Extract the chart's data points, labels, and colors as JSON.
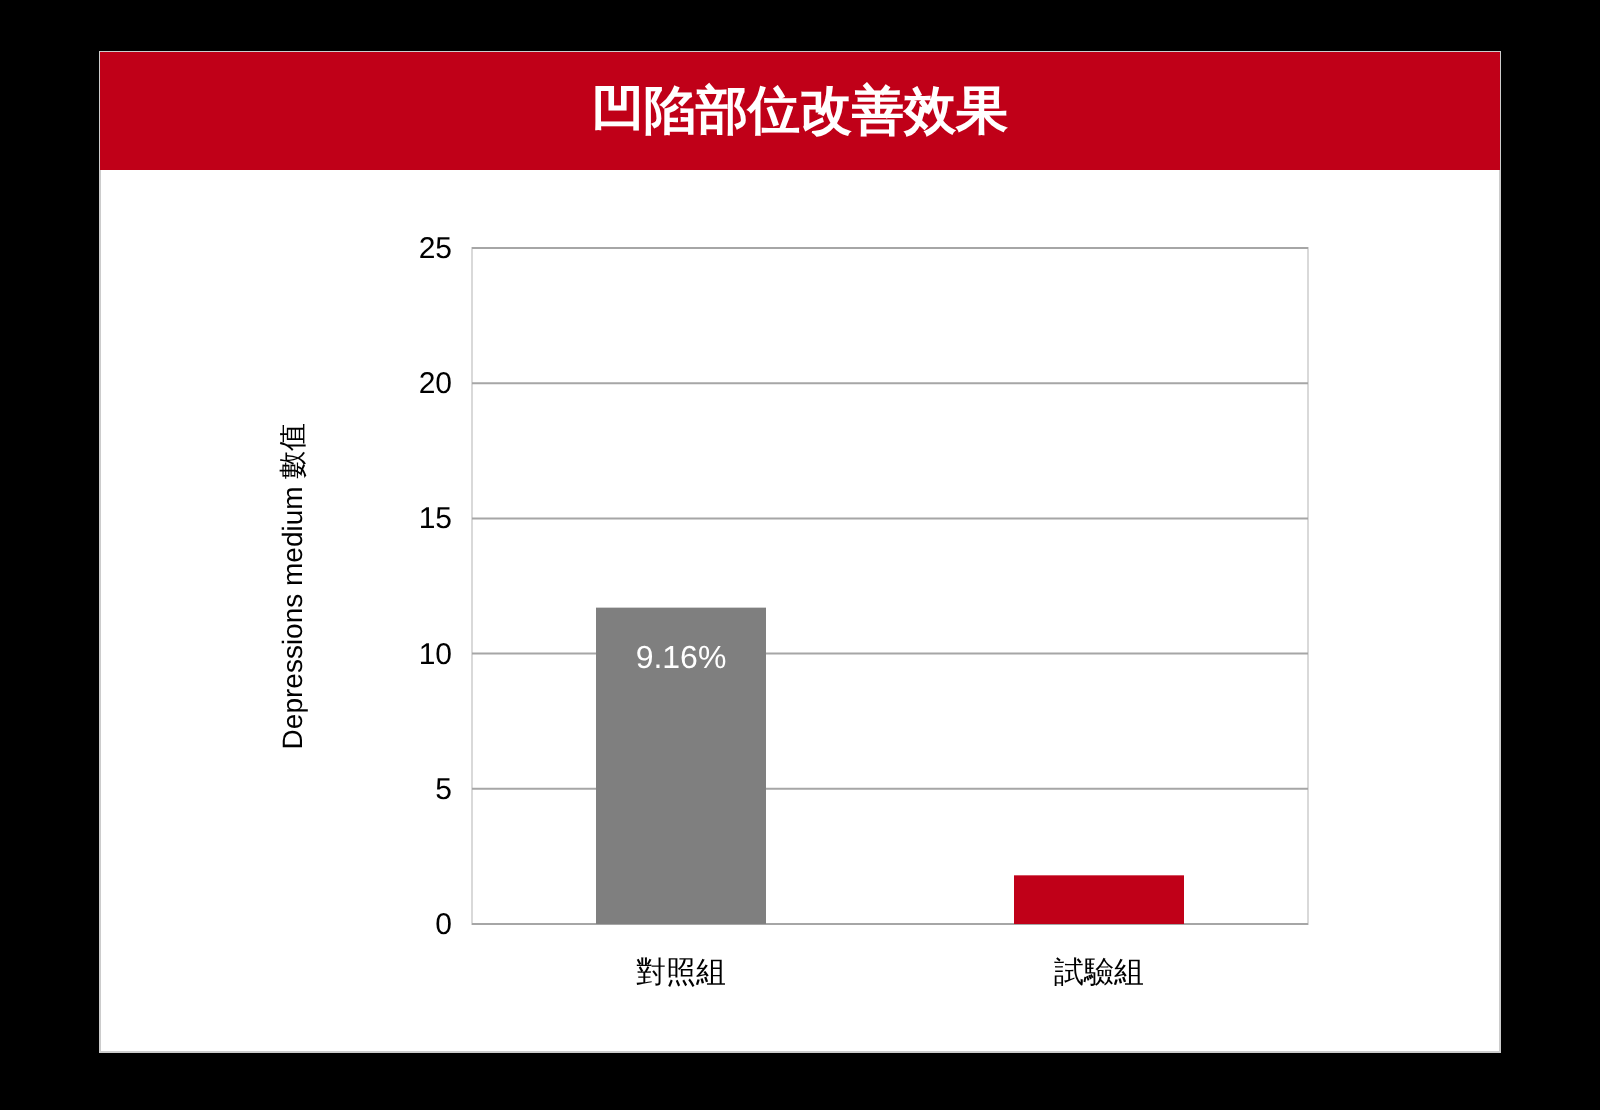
{
  "chart_data": {
    "type": "bar",
    "title": "凹陷部位改善效果",
    "ylabel": "Depressions medium 數值",
    "categories": [
      "對照組",
      "試驗組"
    ],
    "values": [
      11.7,
      1.8
    ],
    "colors": [
      "#7f7f7f",
      "#c00018"
    ],
    "annotations": [
      "9.16%"
    ],
    "ylim": [
      0,
      25
    ],
    "yticks": [
      0,
      5,
      10,
      15,
      20,
      25
    ],
    "grid": "y"
  }
}
